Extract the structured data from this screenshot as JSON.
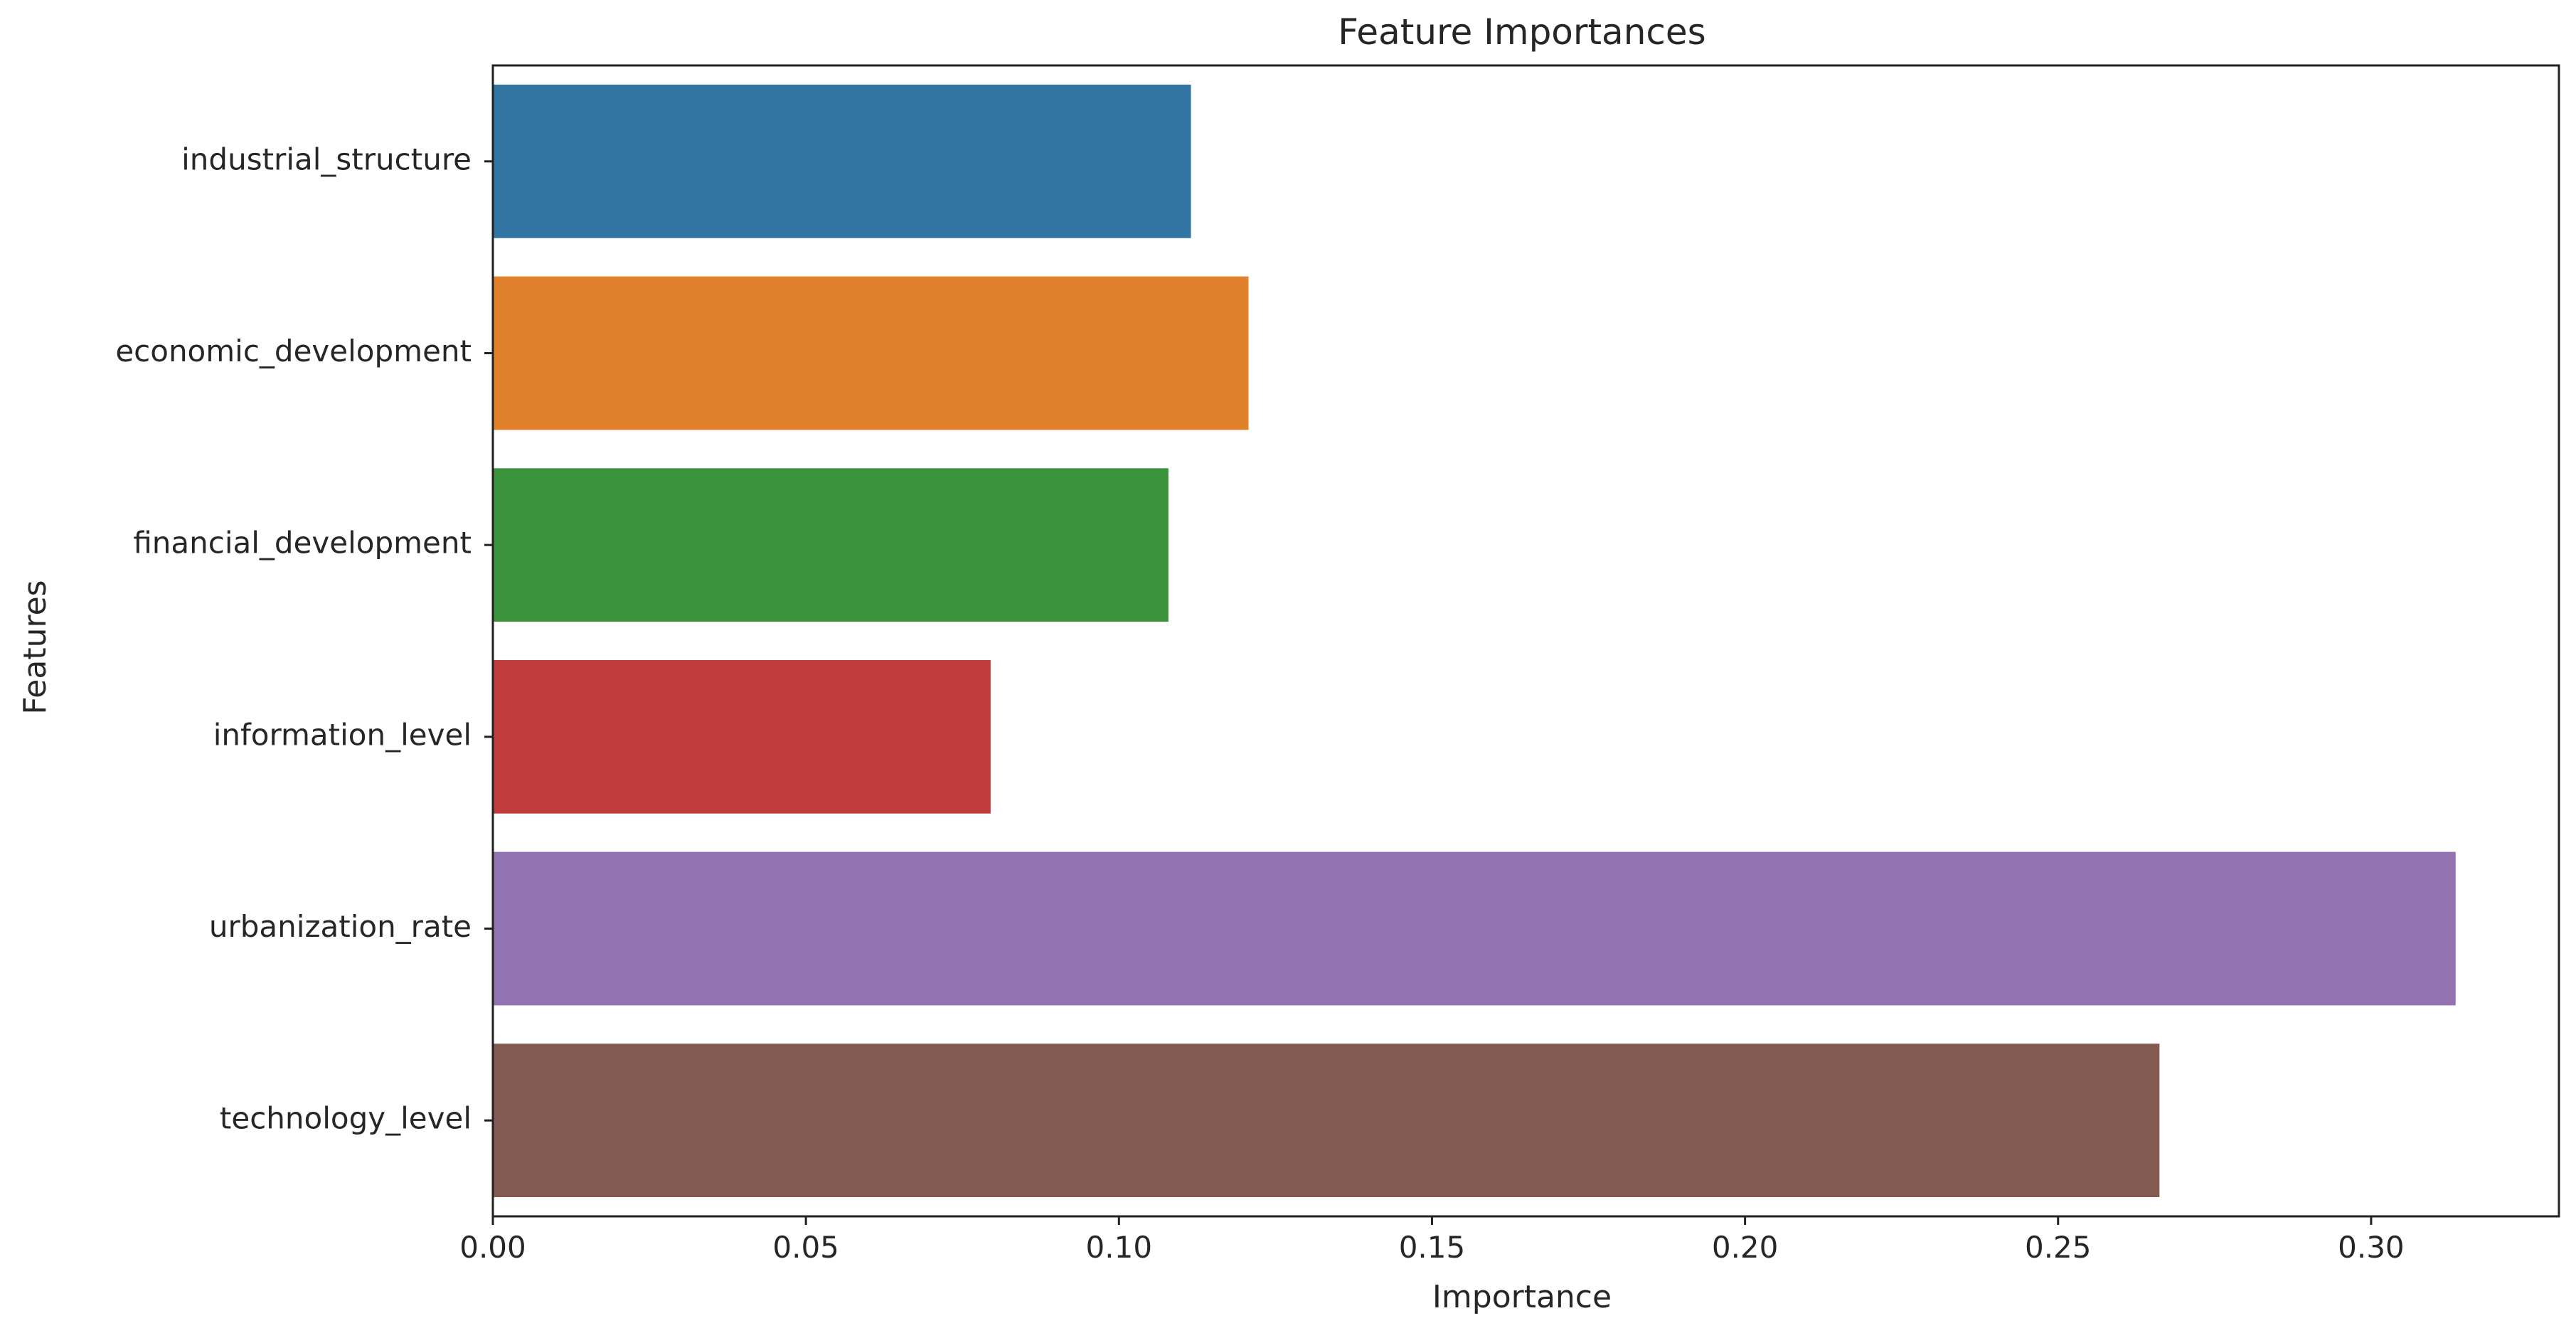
{
  "chart_data": {
    "type": "bar",
    "orientation": "horizontal",
    "title": "Feature Importances",
    "xlabel": "Importance",
    "ylabel": "Features",
    "categories": [
      "industrial_structure",
      "economic_development",
      "financial_development",
      "information_level",
      "urbanization_rate",
      "technology_level"
    ],
    "values": [
      0.1115,
      0.1207,
      0.1079,
      0.0795,
      0.3135,
      0.2662
    ],
    "colors": [
      "#3274a1",
      "#e1812c",
      "#3a923a",
      "#c03d3e",
      "#9372b2",
      "#845b53"
    ],
    "xlim": [
      0.0,
      0.33
    ],
    "xticks": [
      0.0,
      0.05,
      0.1,
      0.15,
      0.2,
      0.25,
      0.3
    ],
    "xtick_labels": [
      "0.00",
      "0.05",
      "0.10",
      "0.15",
      "0.20",
      "0.25",
      "0.30"
    ],
    "grid": false,
    "legend": "none"
  }
}
